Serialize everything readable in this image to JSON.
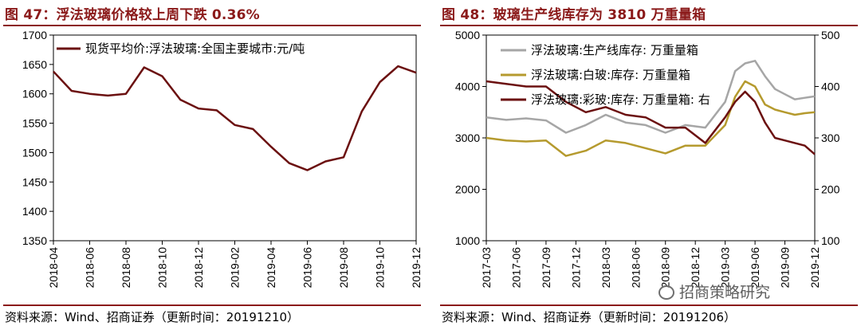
{
  "left": {
    "title": "图 47：浮法玻璃价格较上周下跌 0.36%",
    "source": "资料来源：Wind、招商证券（更新时间：20191210）"
  },
  "right": {
    "title": "图 48：玻璃生产线库存为 3810 万重量箱",
    "source": "资料来源：Wind、招商证券（更新时间：20191206）",
    "watermark": "招商策略研究",
    "watermark_icon": "wechat-icon"
  },
  "colors": {
    "accent": "#8b1a1a",
    "series_price": "#6b1010",
    "series_total": "#a6a6a6",
    "series_white": "#b59a2e",
    "series_color": "#6b1010"
  },
  "chart_data": [
    {
      "type": "line",
      "grid": false,
      "legend_position": "top-left",
      "ylim": [
        1350,
        1700
      ],
      "yticks": [
        1350,
        1400,
        1450,
        1500,
        1550,
        1600,
        1650,
        1700
      ],
      "xticks": [
        "2018-04",
        "2018-06",
        "2018-08",
        "2018-10",
        "2018-12",
        "2019-02",
        "2019-04",
        "2019-06",
        "2019-08",
        "2019-10",
        "2019-12"
      ],
      "series": [
        {
          "name": "现货平均价:浮法玻璃:全国主要城市:元/吨",
          "x": [
            "2018-04",
            "2018-05",
            "2018-06",
            "2018-07",
            "2018-08",
            "2018-09",
            "2018-10",
            "2018-11",
            "2018-12",
            "2019-01",
            "2019-02",
            "2019-03",
            "2019-04",
            "2019-05",
            "2019-06",
            "2019-07",
            "2019-08",
            "2019-09",
            "2019-10",
            "2019-11",
            "2019-12"
          ],
          "values": [
            1638,
            1605,
            1600,
            1597,
            1600,
            1645,
            1630,
            1590,
            1575,
            1572,
            1547,
            1540,
            1510,
            1482,
            1470,
            1485,
            1492,
            1570,
            1620,
            1647,
            1636
          ]
        }
      ]
    },
    {
      "type": "line",
      "grid": false,
      "legend_position": "top-left",
      "ylim": [
        1000,
        5000
      ],
      "yticks": [
        1000,
        2000,
        3000,
        4000,
        5000
      ],
      "ylim_right": [
        100,
        500
      ],
      "yticks_right": [
        100,
        200,
        300,
        400,
        500
      ],
      "xticks": [
        "2017-03",
        "2017-06",
        "2017-09",
        "2017-12",
        "2018-03",
        "2018-06",
        "2018-09",
        "2018-12",
        "2019-03",
        "2019-06",
        "2019-09",
        "2019-12"
      ],
      "series": [
        {
          "name": "浮法玻璃:生产线库存: 万重量箱",
          "axis": "left",
          "x": [
            "2017-03",
            "2017-05",
            "2017-07",
            "2017-09",
            "2017-11",
            "2018-01",
            "2018-03",
            "2018-05",
            "2018-07",
            "2018-09",
            "2018-11",
            "2019-01",
            "2019-03",
            "2019-04",
            "2019-05",
            "2019-06",
            "2019-07",
            "2019-08",
            "2019-09",
            "2019-10",
            "2019-11",
            "2019-12"
          ],
          "values": [
            3400,
            3350,
            3380,
            3340,
            3100,
            3250,
            3450,
            3300,
            3250,
            3100,
            3250,
            3200,
            3700,
            4300,
            4450,
            4500,
            4200,
            3950,
            3850,
            3750,
            3780,
            3810
          ]
        },
        {
          "name": "浮法玻璃:白玻:库存: 万重量箱",
          "axis": "left",
          "x": [
            "2017-03",
            "2017-05",
            "2017-07",
            "2017-09",
            "2017-11",
            "2018-01",
            "2018-03",
            "2018-05",
            "2018-07",
            "2018-09",
            "2018-11",
            "2019-01",
            "2019-03",
            "2019-04",
            "2019-05",
            "2019-06",
            "2019-07",
            "2019-08",
            "2019-09",
            "2019-10",
            "2019-11",
            "2019-12"
          ],
          "values": [
            3000,
            2950,
            2930,
            2950,
            2650,
            2750,
            2950,
            2900,
            2800,
            2700,
            2850,
            2850,
            3250,
            3800,
            4100,
            4000,
            3650,
            3550,
            3500,
            3450,
            3480,
            3500
          ]
        },
        {
          "name": "浮法玻璃:彩玻:库存: 万重量箱: 右",
          "axis": "right",
          "x": [
            "2017-03",
            "2017-05",
            "2017-07",
            "2017-09",
            "2017-11",
            "2018-01",
            "2018-03",
            "2018-05",
            "2018-07",
            "2018-09",
            "2018-11",
            "2019-01",
            "2019-03",
            "2019-04",
            "2019-05",
            "2019-06",
            "2019-07",
            "2019-08",
            "2019-09",
            "2019-10",
            "2019-11",
            "2019-12"
          ],
          "values": [
            410,
            405,
            400,
            400,
            370,
            350,
            360,
            345,
            340,
            320,
            320,
            290,
            340,
            370,
            390,
            370,
            330,
            300,
            295,
            290,
            285,
            268
          ]
        }
      ]
    }
  ]
}
